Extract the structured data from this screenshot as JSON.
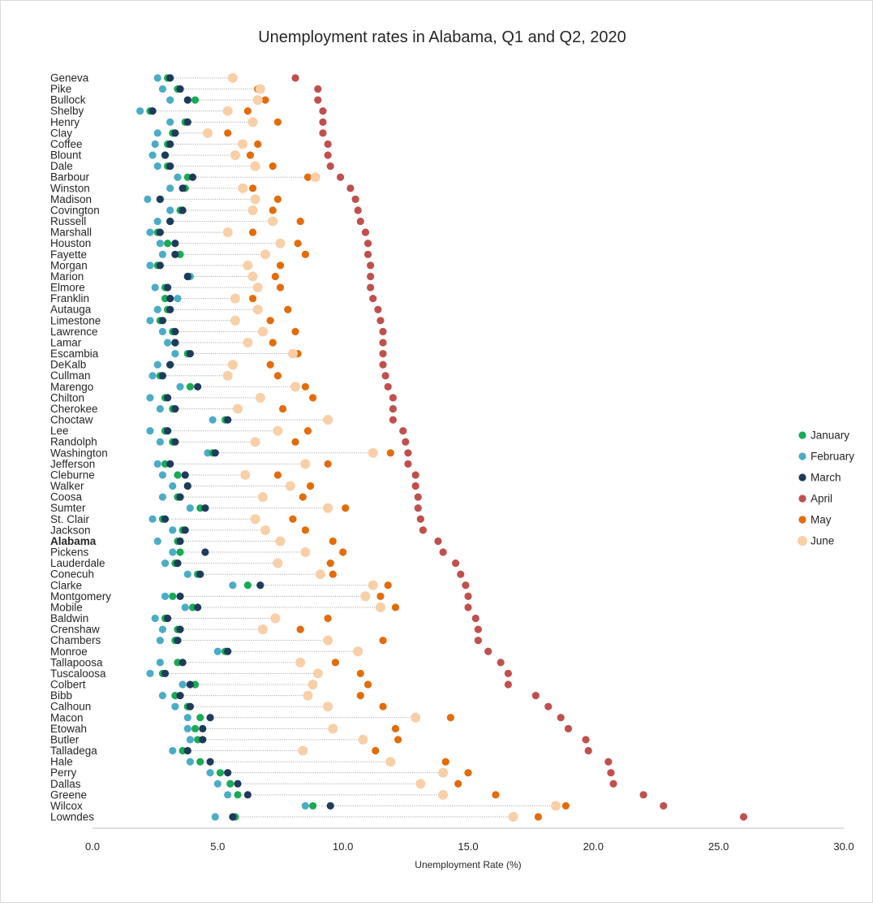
{
  "chart_data": {
    "type": "scatter",
    "title": "Unemployment rates in Alabama, Q1 and Q2, 2020",
    "xlabel": "Unemployment Rate (%)",
    "ylabel": "",
    "xlim": [
      0,
      30
    ],
    "xticks": [
      "0.0",
      "5.0",
      "10.0",
      "15.0",
      "20.0",
      "25.0",
      "30.0"
    ],
    "legend_position": "right",
    "grid": false,
    "highlight_category": "Alabama",
    "categories": [
      "Geneva",
      "Pike",
      "Bullock",
      "Shelby",
      "Henry",
      "Clay",
      "Coffee",
      "Blount",
      "Dale",
      "Barbour",
      "Winston",
      "Madison",
      "Covington",
      "Russell",
      "Marshall",
      "Houston",
      "Fayette",
      "Morgan",
      "Marion",
      "Elmore",
      "Franklin",
      "Autauga",
      "Limestone",
      "Lawrence",
      "Lamar",
      "Escambia",
      "DeKalb",
      "Cullman",
      "Marengo",
      "Chilton",
      "Cherokee",
      "Choctaw",
      "Lee",
      "Randolph",
      "Washington",
      "Jefferson",
      "Cleburne",
      "Walker",
      "Coosa",
      "Sumter",
      "St. Clair",
      "Jackson",
      "Alabama",
      "Pickens",
      "Lauderdale",
      "Conecuh",
      "Clarke",
      "Montgomery",
      "Mobile",
      "Baldwin",
      "Crenshaw",
      "Chambers",
      "Monroe",
      "Tallapoosa",
      "Tuscaloosa",
      "Colbert",
      "Bibb",
      "Calhoun",
      "Macon",
      "Etowah",
      "Butler",
      "Talladega",
      "Hale",
      "Perry",
      "Dallas",
      "Greene",
      "Wilcox",
      "Lowndes"
    ],
    "series": [
      {
        "name": "January",
        "color": "#1aaa55",
        "values": [
          3.0,
          3.4,
          4.1,
          2.3,
          3.7,
          3.2,
          3.0,
          2.9,
          3.0,
          3.8,
          3.7,
          2.7,
          3.5,
          3.1,
          2.6,
          3.0,
          3.5,
          2.6,
          3.8,
          2.9,
          2.9,
          3.0,
          2.7,
          3.2,
          3.3,
          3.8,
          3.1,
          2.7,
          3.9,
          2.9,
          3.2,
          5.3,
          2.9,
          3.2,
          4.8,
          2.9,
          3.4,
          3.8,
          3.4,
          4.3,
          2.8,
          3.6,
          3.4,
          3.5,
          3.3,
          4.2,
          6.2,
          3.2,
          4.0,
          2.9,
          3.4,
          3.3,
          5.3,
          3.4,
          2.8,
          4.1,
          3.3,
          3.8,
          4.3,
          4.1,
          4.2,
          3.6,
          4.3,
          5.1,
          5.5,
          5.8,
          8.8,
          5.7
        ]
      },
      {
        "name": "February",
        "color": "#4bacc6",
        "values": [
          2.6,
          2.8,
          3.1,
          1.9,
          3.1,
          2.6,
          2.5,
          2.4,
          2.6,
          3.4,
          3.1,
          2.2,
          3.1,
          2.6,
          2.3,
          2.7,
          2.8,
          2.3,
          3.9,
          2.5,
          3.4,
          2.6,
          2.3,
          2.8,
          3.0,
          3.3,
          2.6,
          2.4,
          3.5,
          2.3,
          2.7,
          4.8,
          2.3,
          2.7,
          4.6,
          2.6,
          2.8,
          3.2,
          2.8,
          3.9,
          2.4,
          3.2,
          2.6,
          3.2,
          2.9,
          3.8,
          5.6,
          2.9,
          3.7,
          2.5,
          2.8,
          2.7,
          5.0,
          2.7,
          2.3,
          3.6,
          2.8,
          3.3,
          3.8,
          3.8,
          3.9,
          3.2,
          3.9,
          4.7,
          5.0,
          5.4,
          8.5,
          4.9
        ]
      },
      {
        "name": "March",
        "color": "#1f3b5b",
        "values": [
          3.1,
          3.5,
          3.8,
          2.4,
          3.8,
          3.3,
          3.1,
          2.9,
          3.1,
          4.0,
          3.6,
          2.7,
          3.6,
          3.1,
          2.7,
          3.3,
          3.3,
          2.7,
          3.8,
          3.0,
          3.1,
          3.1,
          2.8,
          3.3,
          3.3,
          3.9,
          3.1,
          2.8,
          4.2,
          3.0,
          3.3,
          5.4,
          3.0,
          3.3,
          4.9,
          3.1,
          3.7,
          3.8,
          3.5,
          4.5,
          2.9,
          3.7,
          3.5,
          4.5,
          3.4,
          4.3,
          6.7,
          3.5,
          4.2,
          3.0,
          3.5,
          3.4,
          5.4,
          3.6,
          2.9,
          3.9,
          3.5,
          3.9,
          4.7,
          4.4,
          4.4,
          3.8,
          4.7,
          5.4,
          5.8,
          6.2,
          9.5,
          5.6
        ]
      },
      {
        "name": "April",
        "color": "#c0504d",
        "values": [
          8.1,
          9.0,
          9.0,
          9.2,
          9.2,
          9.2,
          9.4,
          9.4,
          9.5,
          9.9,
          10.3,
          10.5,
          10.6,
          10.7,
          10.9,
          11.0,
          11.0,
          11.1,
          11.1,
          11.1,
          11.2,
          11.4,
          11.5,
          11.6,
          11.6,
          11.6,
          11.6,
          11.7,
          11.8,
          12.0,
          12.0,
          12.0,
          12.4,
          12.5,
          12.6,
          12.6,
          12.9,
          12.9,
          13.0,
          13.0,
          13.1,
          13.2,
          13.8,
          14.0,
          14.5,
          14.7,
          14.9,
          15.0,
          15.0,
          15.3,
          15.4,
          15.4,
          15.8,
          16.3,
          16.6,
          16.6,
          17.7,
          18.2,
          18.7,
          19.0,
          19.7,
          19.8,
          20.6,
          20.7,
          20.8,
          22.0,
          22.8,
          26.0
        ]
      },
      {
        "name": "May",
        "color": "#e36c09",
        "values": [
          5.6,
          6.6,
          6.9,
          6.2,
          7.4,
          5.4,
          6.6,
          6.3,
          7.2,
          8.6,
          6.4,
          7.4,
          7.2,
          8.3,
          6.4,
          8.2,
          8.5,
          7.5,
          7.3,
          7.5,
          6.4,
          7.8,
          7.1,
          8.1,
          7.2,
          8.2,
          7.1,
          7.4,
          8.5,
          8.8,
          7.6,
          9.4,
          8.6,
          8.1,
          11.9,
          9.4,
          7.4,
          8.7,
          8.4,
          10.1,
          8.0,
          8.5,
          9.6,
          10.0,
          9.5,
          9.6,
          11.8,
          11.5,
          12.1,
          9.4,
          8.3,
          11.6,
          10.6,
          9.7,
          10.7,
          11.0,
          10.7,
          11.6,
          14.3,
          12.1,
          12.2,
          11.3,
          14.1,
          15.0,
          14.6,
          16.1,
          18.9,
          17.8
        ]
      },
      {
        "name": "June",
        "color": "#f9cfa8",
        "values": [
          5.6,
          6.7,
          6.6,
          5.4,
          6.4,
          4.6,
          6.0,
          5.7,
          6.5,
          8.9,
          6.0,
          6.5,
          6.4,
          7.2,
          5.4,
          7.5,
          6.9,
          6.2,
          6.4,
          6.6,
          5.7,
          6.6,
          5.7,
          6.8,
          6.2,
          8.0,
          5.6,
          5.4,
          8.1,
          6.7,
          5.8,
          9.4,
          7.4,
          6.5,
          11.2,
          8.5,
          6.1,
          7.9,
          6.8,
          9.4,
          6.5,
          6.9,
          7.5,
          8.5,
          7.4,
          9.1,
          11.2,
          10.9,
          11.5,
          7.3,
          6.8,
          9.4,
          10.6,
          8.3,
          9.0,
          8.8,
          8.6,
          9.4,
          12.9,
          9.6,
          10.8,
          8.4,
          11.9,
          14.0,
          13.1,
          14.0,
          18.5,
          16.8
        ]
      }
    ]
  }
}
